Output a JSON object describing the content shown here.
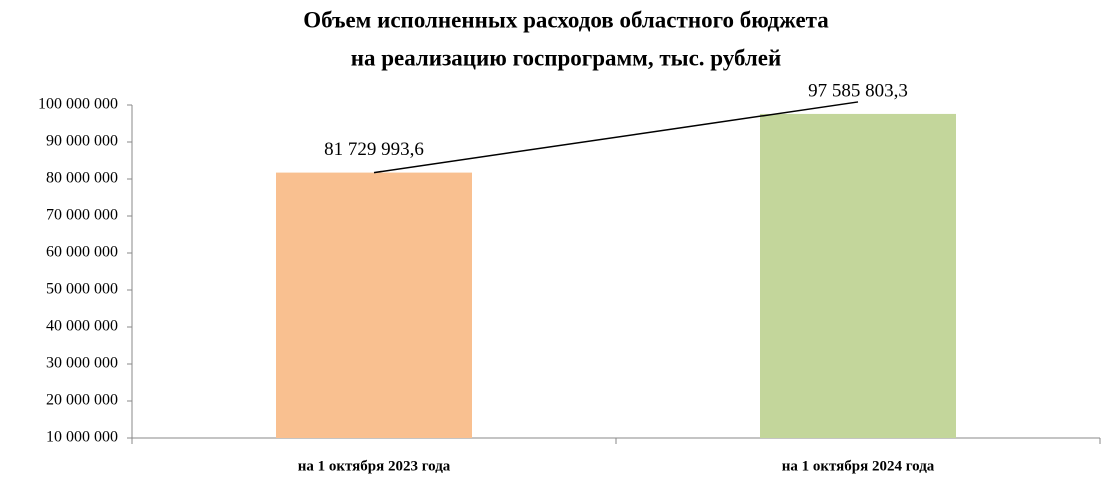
{
  "chart_data": {
    "type": "bar",
    "title": [
      "Объем исполненных расходов областного бюджета",
      "на реализацию госпрограмм, тыс. рублей"
    ],
    "categories": [
      "на 1 октября 2023 года",
      "на 1 октября 2024 года"
    ],
    "values": [
      81729993.6,
      97585803.3
    ],
    "value_labels": [
      "81 729 993,6",
      "97 585 803,3"
    ],
    "colors": [
      "#f9c090",
      "#c3d69b"
    ],
    "ylim": [
      10000000,
      100000000
    ],
    "yticks": [
      {
        "value": 10000000,
        "label": "10 000 000"
      },
      {
        "value": 20000000,
        "label": "20 000 000"
      },
      {
        "value": 30000000,
        "label": "30 000 000"
      },
      {
        "value": 40000000,
        "label": "40 000 000"
      },
      {
        "value": 50000000,
        "label": "50 000 000"
      },
      {
        "value": 60000000,
        "label": "60 000 000"
      },
      {
        "value": 70000000,
        "label": "70 000 000"
      },
      {
        "value": 80000000,
        "label": "80 000 000"
      },
      {
        "value": 90000000,
        "label": "90 000 000"
      },
      {
        "value": 100000000,
        "label": "100 000 000"
      }
    ],
    "grid": false
  }
}
